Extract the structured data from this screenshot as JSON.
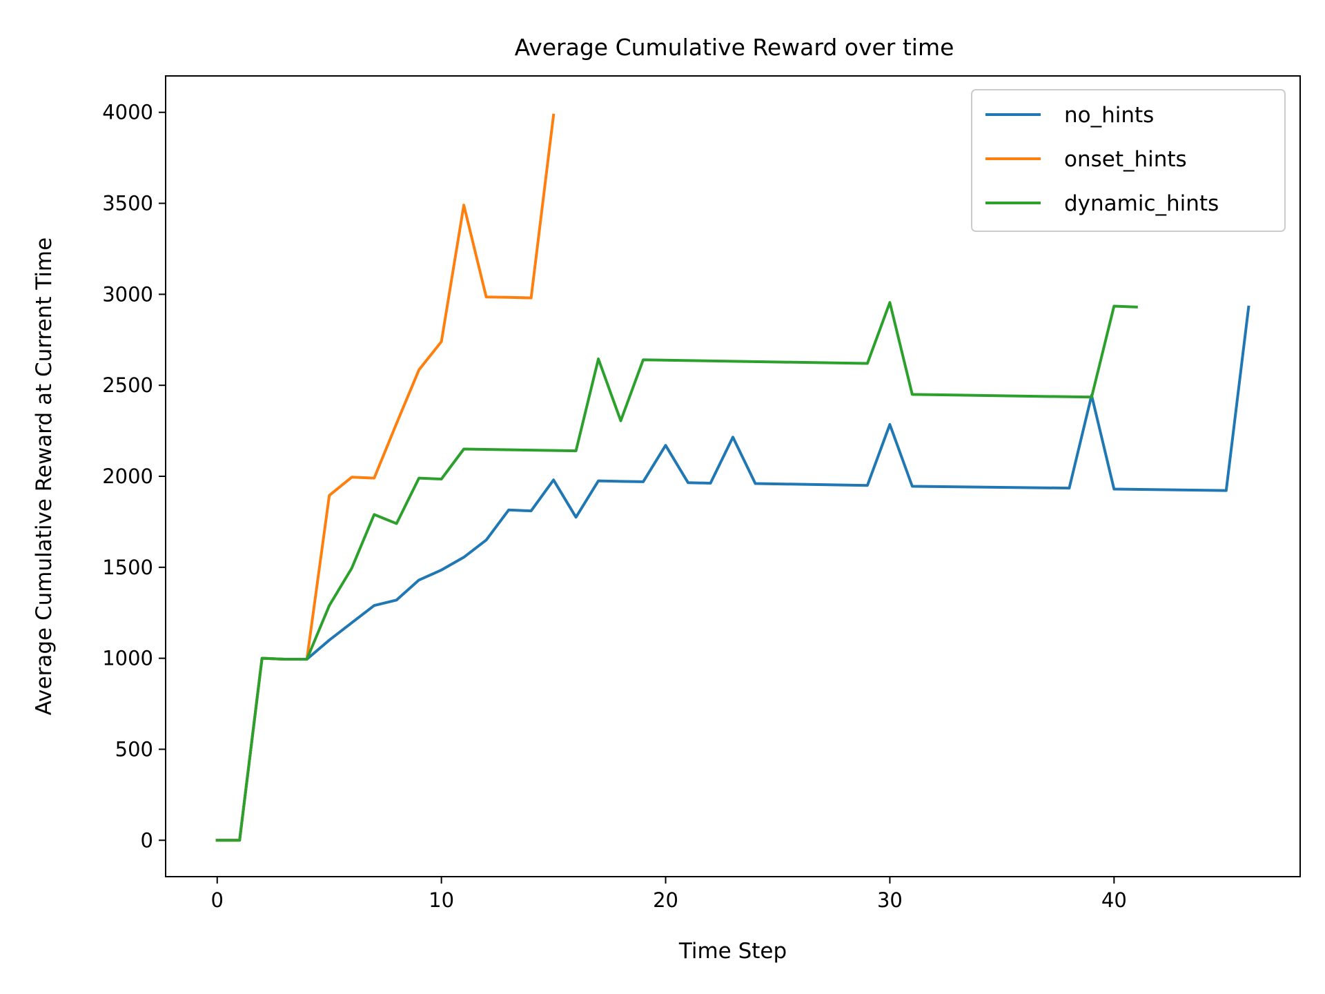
{
  "chart_data": {
    "type": "line",
    "title": "Average Cumulative Reward over time",
    "xlabel": "Time Step",
    "ylabel": "Average Cumulative Reward at Current Time",
    "xlim": [
      -2.3,
      48.3
    ],
    "ylim": [
      -200,
      4200
    ],
    "xticks": [
      0,
      10,
      20,
      30,
      40
    ],
    "yticks": [
      0,
      500,
      1000,
      1500,
      2000,
      2500,
      3000,
      3500,
      4000
    ],
    "grid": false,
    "legend_position": "top-right",
    "series": [
      {
        "name": "no_hints",
        "color": "#1f77b4",
        "x": [
          0,
          1,
          2,
          3,
          4,
          5,
          6,
          7,
          8,
          9,
          10,
          11,
          12,
          13,
          14,
          15,
          16,
          17,
          18,
          19,
          20,
          21,
          22,
          23,
          24,
          29,
          30,
          31,
          38,
          39,
          40,
          45,
          46
        ],
        "y": [
          0,
          0,
          1000,
          995,
          995,
          1100,
          1195,
          1290,
          1320,
          1430,
          1485,
          1555,
          1650,
          1815,
          1810,
          1980,
          1775,
          1975,
          1972,
          1970,
          2170,
          1965,
          1962,
          2215,
          1960,
          1950,
          2285,
          1945,
          1935,
          2445,
          1930,
          1922,
          2930
        ]
      },
      {
        "name": "onset_hints",
        "color": "#ff7f0e",
        "x": [
          0,
          1,
          2,
          3,
          4,
          5,
          6,
          7,
          8,
          9,
          10,
          11,
          12,
          13,
          14,
          15
        ],
        "y": [
          0,
          0,
          1000,
          995,
          995,
          1895,
          1995,
          1990,
          2290,
          2585,
          2740,
          3490,
          2985,
          2983,
          2980,
          3985
        ]
      },
      {
        "name": "dynamic_hints",
        "color": "#2ca02c",
        "x": [
          0,
          1,
          2,
          3,
          4,
          5,
          6,
          7,
          8,
          9,
          10,
          11,
          16,
          17,
          18,
          19,
          29,
          30,
          31,
          39,
          40,
          41
        ],
        "y": [
          0,
          0,
          1000,
          995,
          995,
          1290,
          1495,
          1790,
          1740,
          1990,
          1985,
          2150,
          2140,
          2645,
          2305,
          2640,
          2620,
          2955,
          2450,
          2435,
          2935,
          2930
        ]
      }
    ]
  }
}
